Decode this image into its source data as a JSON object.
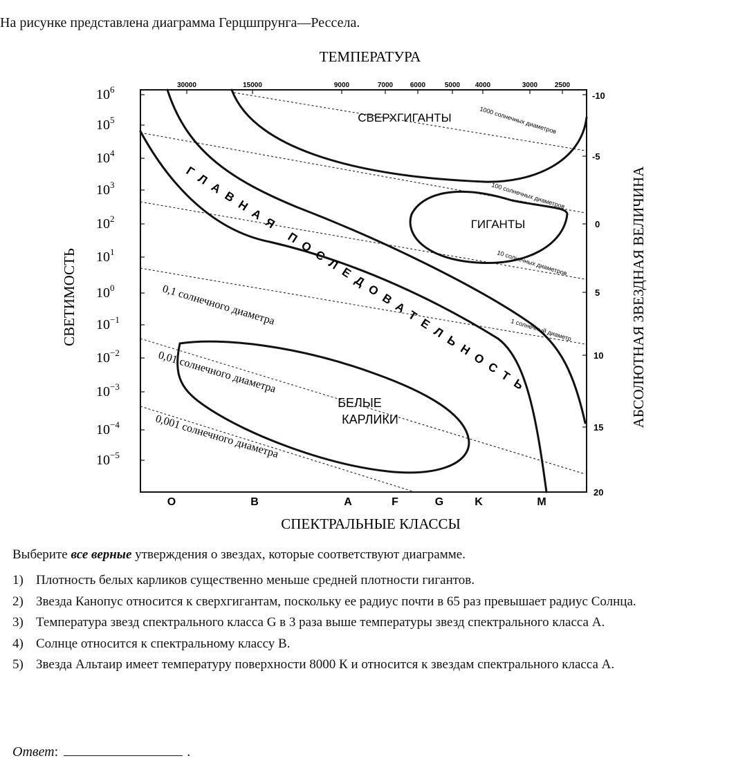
{
  "intro": "На рисунке представлена диаграмма Герцшпрунга—Рессела.",
  "chart_data": {
    "type": "diagram",
    "title": "ТЕМПЕРАТУРА",
    "xlabel": "СПЕКТРАЛЬНЫЕ КЛАССЫ",
    "ylabel_left": "СВЕТИМОСТЬ",
    "ylabel_right": "АБСОЛЮТНАЯ ЗВЕЗДНАЯ ВЕЛИЧИНА",
    "temperature_ticks": [
      "30000",
      "15000",
      "9000",
      "7000",
      "6000",
      "5000",
      "4000",
      "3000",
      "2500"
    ],
    "luminosity_ticks": [
      {
        "base": "10",
        "exp": "6"
      },
      {
        "base": "10",
        "exp": "5"
      },
      {
        "base": "10",
        "exp": "4"
      },
      {
        "base": "10",
        "exp": "3"
      },
      {
        "base": "10",
        "exp": "2"
      },
      {
        "base": "10",
        "exp": "1"
      },
      {
        "base": "10",
        "exp": "0"
      },
      {
        "base": "10",
        "exp": "−1"
      },
      {
        "base": "10",
        "exp": "−2"
      },
      {
        "base": "10",
        "exp": "−3"
      },
      {
        "base": "10",
        "exp": "−4"
      },
      {
        "base": "10",
        "exp": "−5"
      }
    ],
    "magnitude_ticks": [
      "-10",
      "-5",
      "0",
      "5",
      "10",
      "15",
      "20"
    ],
    "spectral_classes": [
      "O",
      "B",
      "A",
      "F",
      "G",
      "K",
      "M"
    ],
    "regions": {
      "supergiants": "СВЕРХГИГАНТЫ",
      "giants": "ГИГАНТЫ",
      "main_sequence": "ГЛАВНАЯ ПОСЛЕДОВАТЕЛЬНОСТЬ",
      "white_dwarfs_1": "БЕЛЫЕ",
      "white_dwarfs_2": "КАРЛИКИ"
    },
    "radius_lines": [
      "1000 солнечных диаметров",
      "100 солнечных диаметров",
      "10 солнечных диаметров",
      "1 солнечный диаметр",
      "0,1 солнечного диаметра",
      "0,01 солнечного диаметра",
      "0,001 солнечного диаметра"
    ]
  },
  "question": {
    "prefix": "Выберите ",
    "emphasis": "все верные",
    "suffix": " утверждения о звездах, которые соответствуют диаграмме."
  },
  "options": [
    {
      "num": "1)",
      "text": "Плотность белых карликов существенно меньше средней плотности гигантов."
    },
    {
      "num": "2)",
      "text": "Звезда Канопус относится к сверхгигантам, поскольку ее радиус почти в 65 раз превышает радиус Солнца."
    },
    {
      "num": "3)",
      "text": "Температура звезд спектрального класса G в 3 раза выше температуры звезд спектрального класса A."
    },
    {
      "num": "4)",
      "text": "Солнце относится к спектральному классу B."
    },
    {
      "num": "5)",
      "text": "Звезда Альтаир имеет температуру поверхности 8000 К и относится к звездам спектрального класса A."
    }
  ],
  "answer": {
    "label": "Ответ",
    "colon": ":",
    "dot": "."
  }
}
